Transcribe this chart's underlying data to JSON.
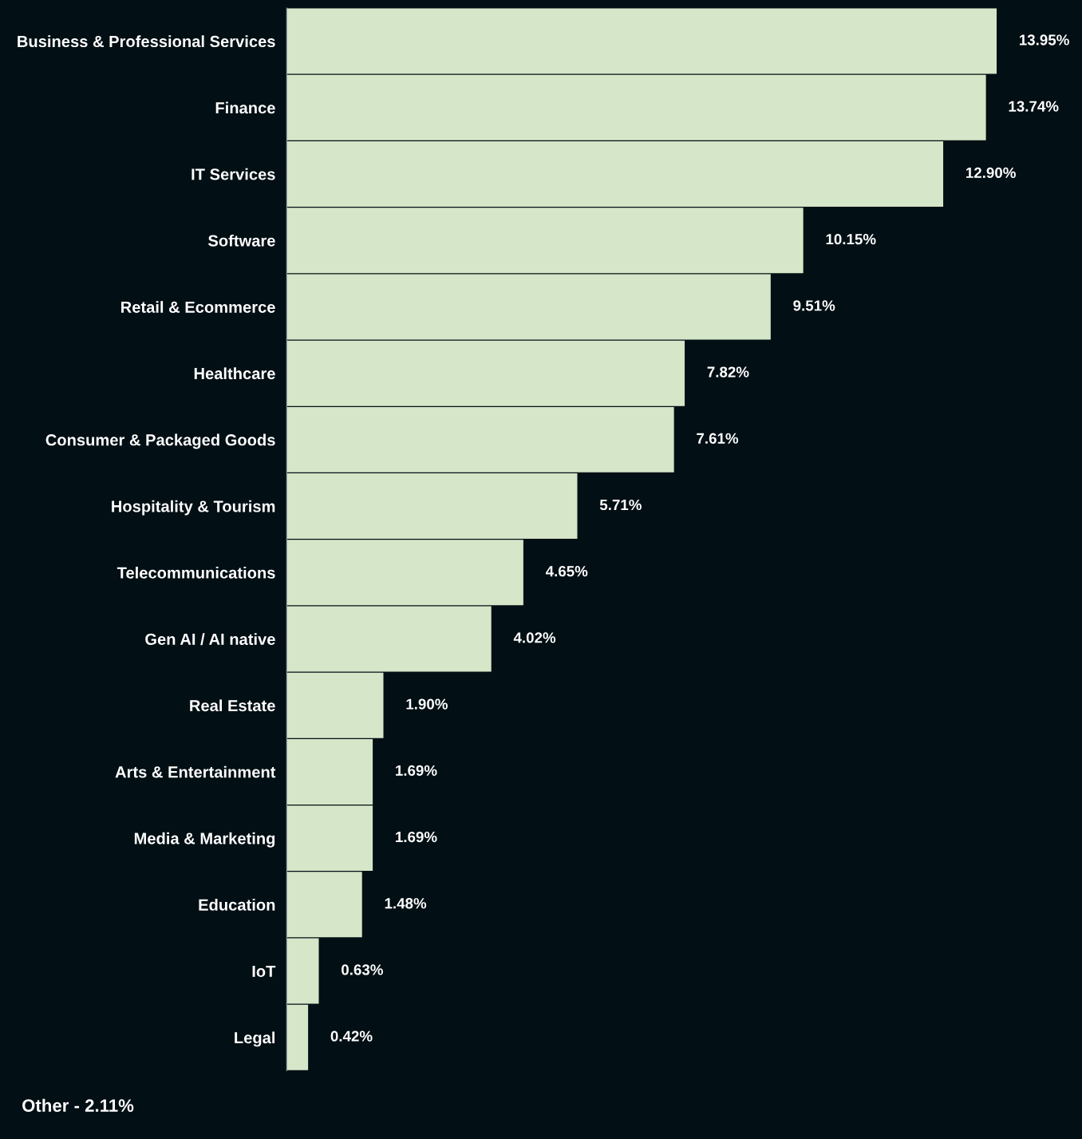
{
  "chart_data": {
    "type": "bar",
    "orientation": "horizontal",
    "categories": [
      "Business & Professional Services",
      "Finance",
      "IT Services",
      "Software",
      "Retail & Ecommerce",
      "Healthcare",
      "Consumer & Packaged Goods",
      "Hospitality & Tourism",
      "Telecommunications",
      "Gen AI / AI native",
      "Real Estate",
      "Arts & Entertainment",
      "Media & Marketing",
      "Education",
      "IoT",
      "Legal"
    ],
    "values": [
      13.95,
      13.74,
      12.9,
      10.15,
      9.51,
      7.82,
      7.61,
      5.71,
      4.65,
      4.02,
      1.9,
      1.69,
      1.69,
      1.48,
      0.63,
      0.42
    ],
    "value_labels": [
      "13.95%",
      "13.74%",
      "12.90%",
      "10.15%",
      "9.51%",
      "7.82%",
      "7.61%",
      "5.71%",
      "4.65%",
      "4.02%",
      "1.90%",
      "1.69%",
      "1.69%",
      "1.48%",
      "0.63%",
      "0.42%"
    ],
    "color": "#d5e6c9",
    "annotations": [
      "Other - 2.11%"
    ]
  }
}
